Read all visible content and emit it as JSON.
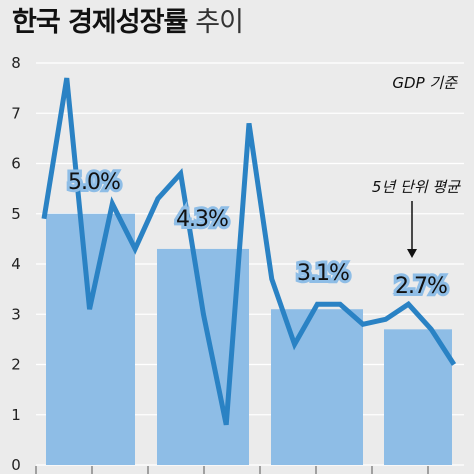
{
  "title": "한국 경제성장률",
  "subtitle": "추이",
  "chart_data": {
    "type": "bar+line",
    "ylim": [
      0,
      8
    ],
    "yticks": [
      "0",
      "1",
      "2",
      "3",
      "4",
      "5",
      "6",
      "7",
      "8"
    ],
    "note": "GDP 기준",
    "annotation": "5년 단위 평균",
    "grid": true,
    "bars": [
      {
        "label": "5.0%",
        "value": 5.0
      },
      {
        "label": "4.3%",
        "value": 4.3
      },
      {
        "label": "3.1%",
        "value": 3.1
      },
      {
        "label": "2.7%",
        "value": 2.7
      }
    ],
    "series": [
      {
        "values": [
          4.9,
          7.7,
          3.1,
          5.2,
          4.3,
          5.3,
          5.8,
          3.0,
          0.8,
          6.8,
          3.7,
          2.4,
          3.2,
          3.2,
          2.8,
          2.9,
          3.2,
          2.7,
          2.0
        ]
      }
    ],
    "colors": {
      "bar": "#8ebde6",
      "line": "#2a82c4",
      "grid": "#ffffff",
      "background": "#ebebeb"
    }
  }
}
